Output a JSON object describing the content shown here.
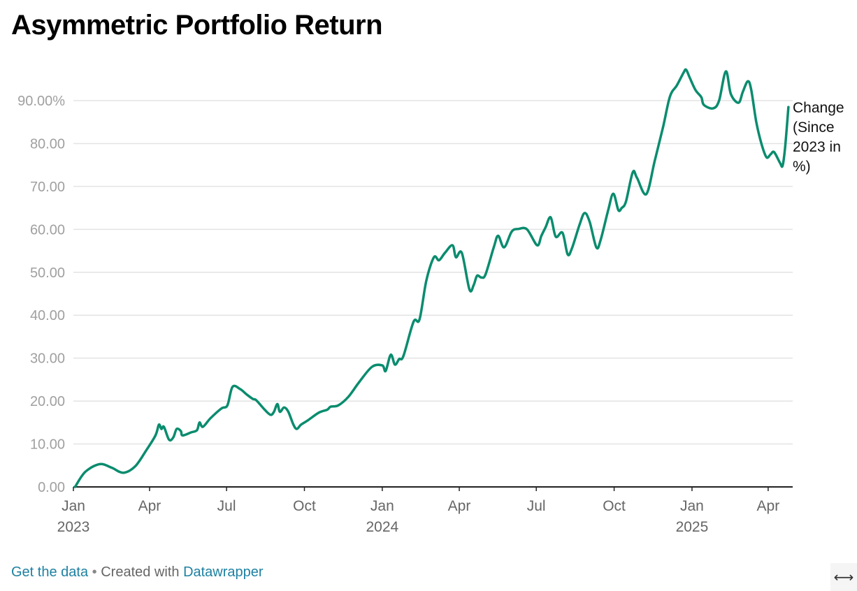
{
  "chart_data": {
    "type": "line",
    "title": "Asymmetric Portfolio Return",
    "series": [
      {
        "name": "Change (Since 2023 in %)",
        "color": "#0a8c6e",
        "points": [
          [
            "2023-01-03",
            0.0
          ],
          [
            "2023-01-15",
            3.5
          ],
          [
            "2023-02-01",
            5.3
          ],
          [
            "2023-02-15",
            4.5
          ],
          [
            "2023-03-01",
            3.3
          ],
          [
            "2023-03-15",
            4.8
          ],
          [
            "2023-03-28",
            8.5
          ],
          [
            "2023-04-08",
            12.0
          ],
          [
            "2023-04-12",
            14.5
          ],
          [
            "2023-04-15",
            13.5
          ],
          [
            "2023-04-18",
            14.0
          ],
          [
            "2023-04-24",
            11.0
          ],
          [
            "2023-04-29",
            11.5
          ],
          [
            "2023-05-03",
            13.5
          ],
          [
            "2023-05-08",
            13.0
          ],
          [
            "2023-05-10",
            12.0
          ],
          [
            "2023-05-20",
            12.7
          ],
          [
            "2023-05-27",
            13.2
          ],
          [
            "2023-05-30",
            15.0
          ],
          [
            "2023-06-03",
            14.0
          ],
          [
            "2023-06-12",
            16.0
          ],
          [
            "2023-06-25",
            18.3
          ],
          [
            "2023-07-02",
            19.0
          ],
          [
            "2023-07-08",
            23.3
          ],
          [
            "2023-07-17",
            22.8
          ],
          [
            "2023-07-25",
            21.5
          ],
          [
            "2023-08-01",
            20.5
          ],
          [
            "2023-08-05",
            20.2
          ],
          [
            "2023-08-15",
            18.0
          ],
          [
            "2023-08-22",
            16.8
          ],
          [
            "2023-08-26",
            17.5
          ],
          [
            "2023-08-30",
            19.3
          ],
          [
            "2023-09-02",
            17.5
          ],
          [
            "2023-09-07",
            18.5
          ],
          [
            "2023-09-12",
            17.5
          ],
          [
            "2023-09-18",
            14.5
          ],
          [
            "2023-09-22",
            13.5
          ],
          [
            "2023-09-27",
            14.5
          ],
          [
            "2023-10-05",
            15.5
          ],
          [
            "2023-10-18",
            17.3
          ],
          [
            "2023-10-28",
            18.0
          ],
          [
            "2023-11-01",
            18.7
          ],
          [
            "2023-11-10",
            19.0
          ],
          [
            "2023-11-22",
            21.0
          ],
          [
            "2023-12-05",
            24.5
          ],
          [
            "2023-12-20",
            28.0
          ],
          [
            "2024-01-01",
            28.3
          ],
          [
            "2024-01-05",
            27.0
          ],
          [
            "2024-01-11",
            30.8
          ],
          [
            "2024-01-16",
            28.5
          ],
          [
            "2024-01-21",
            29.8
          ],
          [
            "2024-01-26",
            30.5
          ],
          [
            "2024-02-07",
            38.5
          ],
          [
            "2024-02-14",
            39.0
          ],
          [
            "2024-02-22",
            48.0
          ],
          [
            "2024-03-02",
            53.5
          ],
          [
            "2024-03-08",
            52.8
          ],
          [
            "2024-03-15",
            54.5
          ],
          [
            "2024-03-24",
            56.3
          ],
          [
            "2024-03-28",
            53.5
          ],
          [
            "2024-04-04",
            54.5
          ],
          [
            "2024-04-13",
            46.0
          ],
          [
            "2024-04-18",
            47.0
          ],
          [
            "2024-04-22",
            49.2
          ],
          [
            "2024-04-27",
            48.8
          ],
          [
            "2024-05-02",
            49.5
          ],
          [
            "2024-05-12",
            56.0
          ],
          [
            "2024-05-17",
            58.5
          ],
          [
            "2024-05-24",
            55.8
          ],
          [
            "2024-06-02",
            59.5
          ],
          [
            "2024-06-10",
            60.1
          ],
          [
            "2024-06-20",
            60.0
          ],
          [
            "2024-07-02",
            56.3
          ],
          [
            "2024-07-07",
            58.5
          ],
          [
            "2024-07-12",
            60.5
          ],
          [
            "2024-07-18",
            62.8
          ],
          [
            "2024-07-24",
            58.3
          ],
          [
            "2024-08-01",
            59.2
          ],
          [
            "2024-08-07",
            54.2
          ],
          [
            "2024-08-12",
            55.5
          ],
          [
            "2024-08-21",
            61.0
          ],
          [
            "2024-08-27",
            63.8
          ],
          [
            "2024-09-02",
            61.8
          ],
          [
            "2024-09-10",
            55.8
          ],
          [
            "2024-09-15",
            57.5
          ],
          [
            "2024-09-24",
            64.5
          ],
          [
            "2024-09-30",
            68.3
          ],
          [
            "2024-10-06",
            64.5
          ],
          [
            "2024-10-10",
            65.0
          ],
          [
            "2024-10-15",
            66.5
          ],
          [
            "2024-10-23",
            73.3
          ],
          [
            "2024-10-28",
            72.0
          ],
          [
            "2024-11-08",
            68.2
          ],
          [
            "2024-11-18",
            76.0
          ],
          [
            "2024-11-28",
            84.0
          ],
          [
            "2024-12-06",
            91.0
          ],
          [
            "2024-12-14",
            93.5
          ],
          [
            "2024-12-22",
            96.5
          ],
          [
            "2024-12-25",
            97.2
          ],
          [
            "2024-12-29",
            95.5
          ],
          [
            "2025-01-05",
            92.5
          ],
          [
            "2025-01-12",
            90.8
          ],
          [
            "2025-01-15",
            89.0
          ],
          [
            "2025-01-26",
            88.2
          ],
          [
            "2025-02-02",
            90.0
          ],
          [
            "2025-02-10",
            96.8
          ],
          [
            "2025-02-16",
            91.5
          ],
          [
            "2025-02-25",
            89.5
          ],
          [
            "2025-03-02",
            92.0
          ],
          [
            "2025-03-08",
            94.5
          ],
          [
            "2025-03-12",
            92.5
          ],
          [
            "2025-03-18",
            85.0
          ],
          [
            "2025-03-24",
            80.0
          ],
          [
            "2025-03-30",
            76.8
          ],
          [
            "2025-04-04",
            77.5
          ],
          [
            "2025-04-08",
            78.0
          ],
          [
            "2025-04-15",
            75.5
          ],
          [
            "2025-04-18",
            74.8
          ],
          [
            "2025-04-21",
            79.0
          ],
          [
            "2025-04-25",
            88.5
          ]
        ]
      }
    ],
    "line_label": [
      "Change",
      "(Since",
      "2023 in",
      "%)"
    ],
    "ylim": [
      0,
      100
    ],
    "y_ticks": [
      {
        "value": 0,
        "label": "0.00"
      },
      {
        "value": 10,
        "label": "10.00"
      },
      {
        "value": 20,
        "label": "20.00"
      },
      {
        "value": 30,
        "label": "30.00"
      },
      {
        "value": 40,
        "label": "40.00"
      },
      {
        "value": 50,
        "label": "50.00"
      },
      {
        "value": 60,
        "label": "60.00"
      },
      {
        "value": 70,
        "label": "70.00"
      },
      {
        "value": 80,
        "label": "80.00"
      },
      {
        "value": 90,
        "label": "90.00%"
      }
    ],
    "x_ticks": [
      {
        "date": "2023-01-01",
        "label": "Jan",
        "year": "2023"
      },
      {
        "date": "2023-04-01",
        "label": "Apr"
      },
      {
        "date": "2023-07-01",
        "label": "Jul"
      },
      {
        "date": "2023-10-01",
        "label": "Oct"
      },
      {
        "date": "2024-01-01",
        "label": "Jan",
        "year": "2024"
      },
      {
        "date": "2024-04-01",
        "label": "Apr"
      },
      {
        "date": "2024-07-01",
        "label": "Jul"
      },
      {
        "date": "2024-10-01",
        "label": "Oct"
      },
      {
        "date": "2025-01-01",
        "label": "Jan",
        "year": "2025"
      },
      {
        "date": "2025-04-01",
        "label": "Apr"
      }
    ],
    "xlim": [
      "2023-01-01",
      "2025-04-30"
    ],
    "grid": true
  },
  "footer": {
    "get_data": "Get the data",
    "separator": "•",
    "created_with": "Created with",
    "datawrapper": "Datawrapper"
  },
  "resize_symbol": "⟷"
}
